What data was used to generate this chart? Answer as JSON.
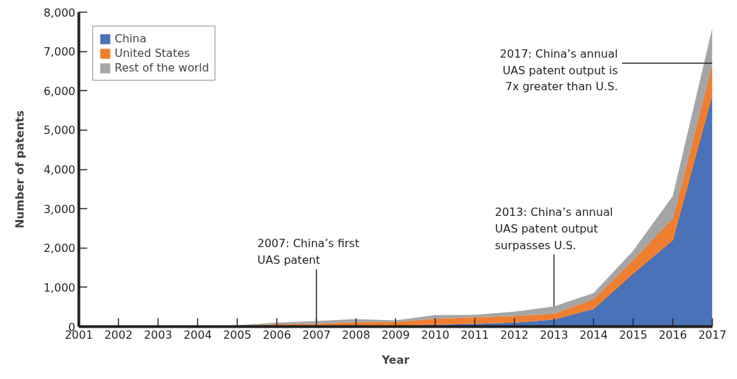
{
  "chart_data": {
    "type": "area",
    "stacked": true,
    "xlabel": "Year",
    "ylabel": "Number of patents",
    "x": [
      2001,
      2002,
      2003,
      2004,
      2005,
      2006,
      2007,
      2008,
      2009,
      2010,
      2011,
      2012,
      2013,
      2014,
      2015,
      2016,
      2017
    ],
    "series": [
      {
        "name": "China",
        "color": "#4a72b8",
        "values": [
          0,
          0,
          0,
          0,
          0,
          0,
          0,
          10,
          10,
          50,
          70,
          100,
          180,
          450,
          1350,
          2200,
          5900
        ]
      },
      {
        "name": "United States",
        "color": "#ee7f30",
        "values": [
          0,
          0,
          0,
          0,
          10,
          60,
          70,
          100,
          110,
          150,
          170,
          170,
          150,
          250,
          350,
          570,
          800
        ]
      },
      {
        "name": "Rest of the world",
        "color": "#a5a5a5",
        "values": [
          0,
          0,
          0,
          0,
          20,
          40,
          70,
          80,
          40,
          90,
          60,
          110,
          180,
          150,
          230,
          550,
          900
        ]
      }
    ],
    "xlim": [
      2001,
      2017
    ],
    "xticks": [
      2001,
      2002,
      2003,
      2004,
      2005,
      2006,
      2007,
      2008,
      2009,
      2010,
      2011,
      2012,
      2013,
      2014,
      2015,
      2016,
      2017
    ],
    "ylim": [
      0,
      8000
    ],
    "yticks": [
      {
        "value": 0,
        "label": "0"
      },
      {
        "value": 1000,
        "label": "1,000"
      },
      {
        "value": 2000,
        "label": "2,000"
      },
      {
        "value": 3000,
        "label": "3,000"
      },
      {
        "value": 4000,
        "label": "4,000"
      },
      {
        "value": 5000,
        "label": "5,000"
      },
      {
        "value": 6000,
        "label": "6,000"
      },
      {
        "value": 7000,
        "label": "7,000"
      },
      {
        "value": 8000,
        "label": "8,000"
      }
    ],
    "grid": false,
    "legend": "top left",
    "annotations": [
      {
        "text": "2007: China’s first\nUAS patent",
        "x": 2007,
        "y": 135
      },
      {
        "text": "2013: China’s annual\nUAS patent output\nsurpasses U.S.",
        "x": 2013,
        "y": 510
      },
      {
        "text": "2017: China’s annual\nUAS patent output is\n7x greater than U.S.",
        "x": 2017,
        "y": 6700
      }
    ]
  }
}
